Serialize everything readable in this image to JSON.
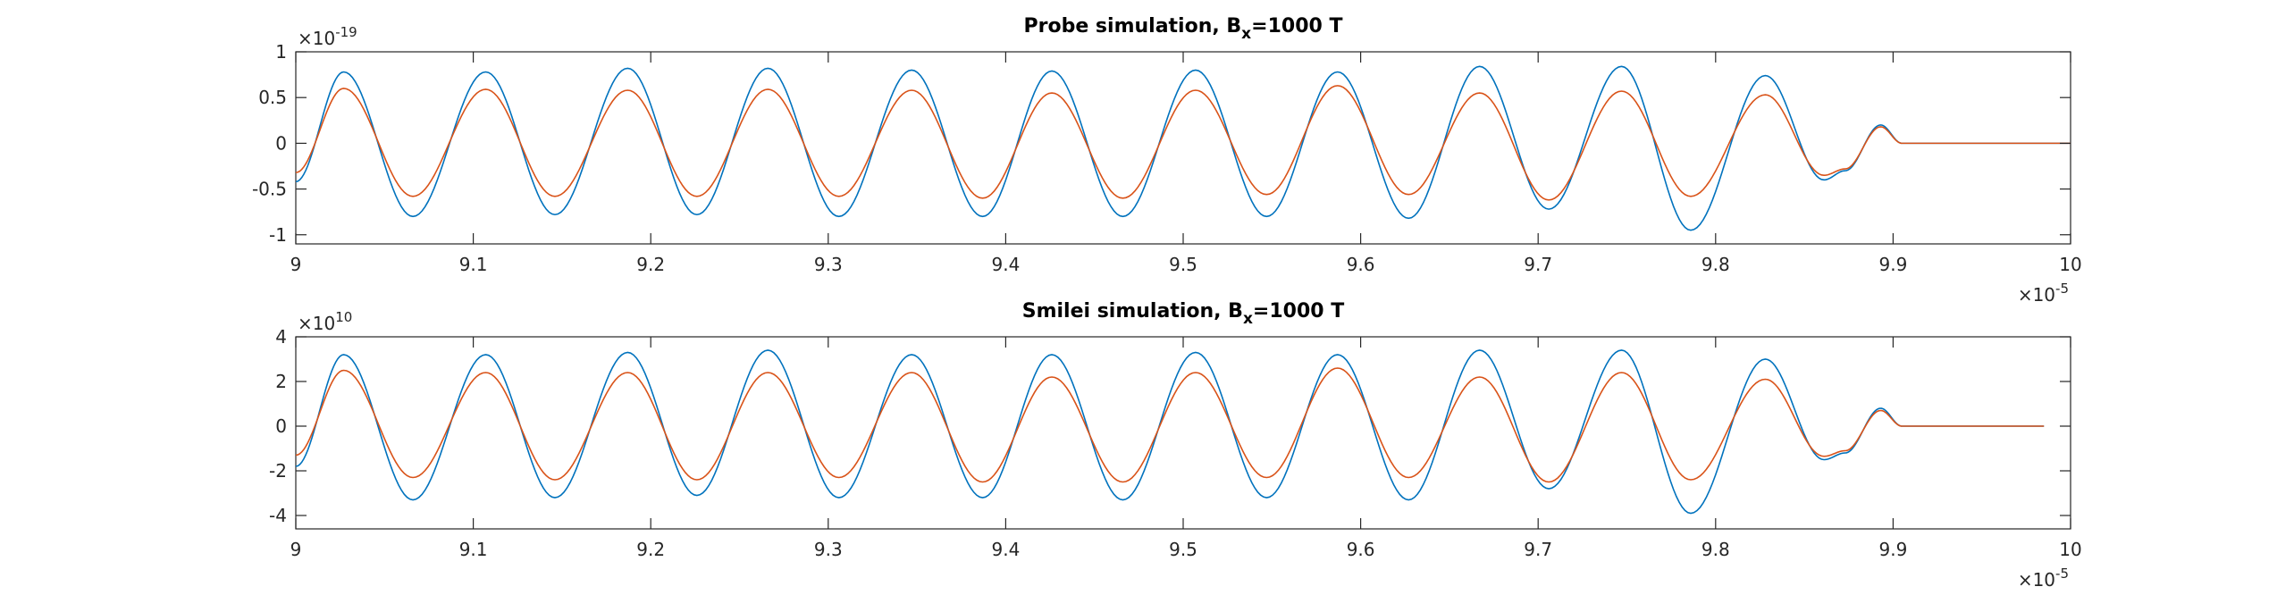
{
  "chart_data": [
    {
      "type": "line",
      "title": "Probe simulation, B",
      "title_subscript": "x",
      "title_suffix": "=1000 T",
      "xlabel": "",
      "ylabel": "",
      "xlim": [
        9,
        10
      ],
      "ylim": [
        -1.1,
        1
      ],
      "x_exponent_label": "×10",
      "x_exponent": "-5",
      "y_exponent_label": "×10",
      "y_exponent": "-19",
      "x_ticks": [
        9,
        9.1,
        9.2,
        9.3,
        9.4,
        9.5,
        9.6,
        9.7,
        9.8,
        9.9,
        10
      ],
      "x_tick_labels": [
        "9",
        "9.1",
        "9.2",
        "9.3",
        "9.4",
        "9.5",
        "9.6",
        "9.7",
        "9.8",
        "9.9",
        "10"
      ],
      "y_ticks": [
        -1,
        -0.5,
        0,
        0.5,
        1
      ],
      "y_tick_labels": [
        "-1",
        "-0.5",
        "0",
        "0.5",
        "1"
      ],
      "grid": false,
      "series": [
        {
          "color": "#0072BD",
          "x": [
            9.0,
            9.027,
            9.066,
            9.107,
            9.146,
            9.187,
            9.226,
            9.266,
            9.306,
            9.347,
            9.387,
            9.426,
            9.466,
            9.507,
            9.547,
            9.587,
            9.627,
            9.667,
            9.706,
            9.747,
            9.786,
            9.828,
            9.861,
            9.873,
            9.893,
            9.905,
            10.0
          ],
          "y": [
            -0.42,
            0.78,
            -0.8,
            0.78,
            -0.78,
            0.82,
            -0.78,
            0.82,
            -0.8,
            0.8,
            -0.8,
            0.79,
            -0.8,
            0.8,
            -0.8,
            0.78,
            -0.82,
            0.84,
            -0.72,
            0.84,
            -0.95,
            0.74,
            -0.4,
            -0.3,
            0.2,
            0.0,
            0.0
          ]
        },
        {
          "color": "#D95319",
          "x": [
            9.0,
            9.027,
            9.066,
            9.107,
            9.146,
            9.187,
            9.226,
            9.266,
            9.306,
            9.347,
            9.387,
            9.426,
            9.466,
            9.507,
            9.547,
            9.587,
            9.627,
            9.667,
            9.706,
            9.747,
            9.786,
            9.828,
            9.861,
            9.873,
            9.893,
            9.905,
            10.0
          ],
          "y": [
            -0.32,
            0.6,
            -0.58,
            0.59,
            -0.58,
            0.58,
            -0.58,
            0.59,
            -0.58,
            0.58,
            -0.6,
            0.55,
            -0.6,
            0.58,
            -0.56,
            0.63,
            -0.56,
            0.55,
            -0.62,
            0.57,
            -0.58,
            0.53,
            -0.35,
            -0.28,
            0.18,
            0.0,
            0.0
          ]
        }
      ]
    },
    {
      "type": "line",
      "title": "Smilei simulation, B",
      "title_subscript": "x",
      "title_suffix": "=1000 T",
      "xlabel": "",
      "ylabel": "",
      "xlim": [
        9,
        10
      ],
      "ylim": [
        -4.6,
        4
      ],
      "x_exponent_label": "×10",
      "x_exponent": "-5",
      "y_exponent_label": "×10",
      "y_exponent": "10",
      "x_ticks": [
        9,
        9.1,
        9.2,
        9.3,
        9.4,
        9.5,
        9.6,
        9.7,
        9.8,
        9.9,
        10
      ],
      "x_tick_labels": [
        "9",
        "9.1",
        "9.2",
        "9.3",
        "9.4",
        "9.5",
        "9.6",
        "9.7",
        "9.8",
        "9.9",
        "10"
      ],
      "y_ticks": [
        -4,
        -2,
        0,
        2,
        4
      ],
      "y_tick_labels": [
        "-4",
        "-2",
        "0",
        "2",
        "4"
      ],
      "grid": false,
      "series": [
        {
          "color": "#0072BD",
          "x": [
            9.0,
            9.027,
            9.066,
            9.107,
            9.146,
            9.187,
            9.226,
            9.266,
            9.306,
            9.347,
            9.387,
            9.426,
            9.466,
            9.507,
            9.547,
            9.587,
            9.627,
            9.667,
            9.706,
            9.747,
            9.786,
            9.828,
            9.861,
            9.873,
            9.893,
            9.905,
            9.985
          ],
          "y": [
            -1.8,
            3.2,
            -3.3,
            3.2,
            -3.2,
            3.3,
            -3.1,
            3.4,
            -3.2,
            3.2,
            -3.2,
            3.2,
            -3.3,
            3.3,
            -3.2,
            3.2,
            -3.3,
            3.4,
            -2.8,
            3.4,
            -3.9,
            3.0,
            -1.5,
            -1.2,
            0.8,
            0.0,
            0.0
          ]
        },
        {
          "color": "#D95319",
          "x": [
            9.0,
            9.027,
            9.066,
            9.107,
            9.146,
            9.187,
            9.226,
            9.266,
            9.306,
            9.347,
            9.387,
            9.426,
            9.466,
            9.507,
            9.547,
            9.587,
            9.627,
            9.667,
            9.706,
            9.747,
            9.786,
            9.828,
            9.861,
            9.873,
            9.893,
            9.905,
            9.985
          ],
          "y": [
            -1.3,
            2.5,
            -2.3,
            2.4,
            -2.4,
            2.4,
            -2.4,
            2.4,
            -2.3,
            2.4,
            -2.5,
            2.2,
            -2.5,
            2.4,
            -2.3,
            2.6,
            -2.3,
            2.2,
            -2.5,
            2.4,
            -2.4,
            2.1,
            -1.35,
            -1.1,
            0.7,
            0.0,
            0.0
          ]
        }
      ]
    }
  ]
}
